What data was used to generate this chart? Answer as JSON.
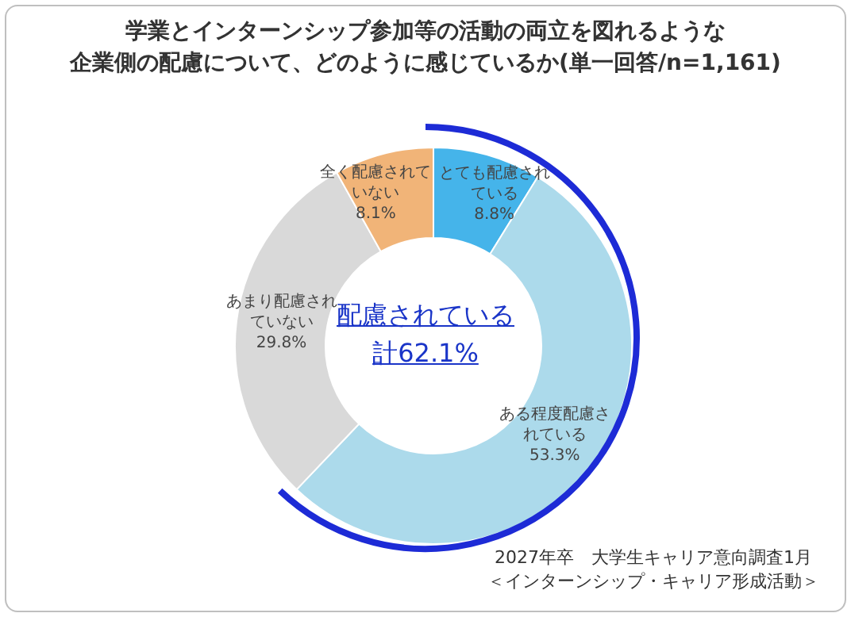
{
  "chart_data": {
    "type": "donut",
    "title": "学業とインターンシップ参加等の活動の両立を図れるような企業側の配慮について、どのように感じているか(単一回答/n=1,161)",
    "categories": [
      "とても配慮されている",
      "ある程度配慮されている",
      "あまり配慮されていない",
      "全く配慮されていない"
    ],
    "values": [
      8.8,
      53.3,
      29.8,
      8.1
    ],
    "colors": [
      "#45b4ea",
      "#acdaeb",
      "#d9d9d9",
      "#f1b478"
    ],
    "value_labels": [
      "8.8%",
      "53.3%",
      "29.8%",
      "8.1%"
    ],
    "annotations": [
      "配慮されている計62.1%",
      "2027年卒　大学生キャリア意向調査1月＜インターンシップ・キャリア形成活動＞"
    ],
    "legend": false
  }
}
